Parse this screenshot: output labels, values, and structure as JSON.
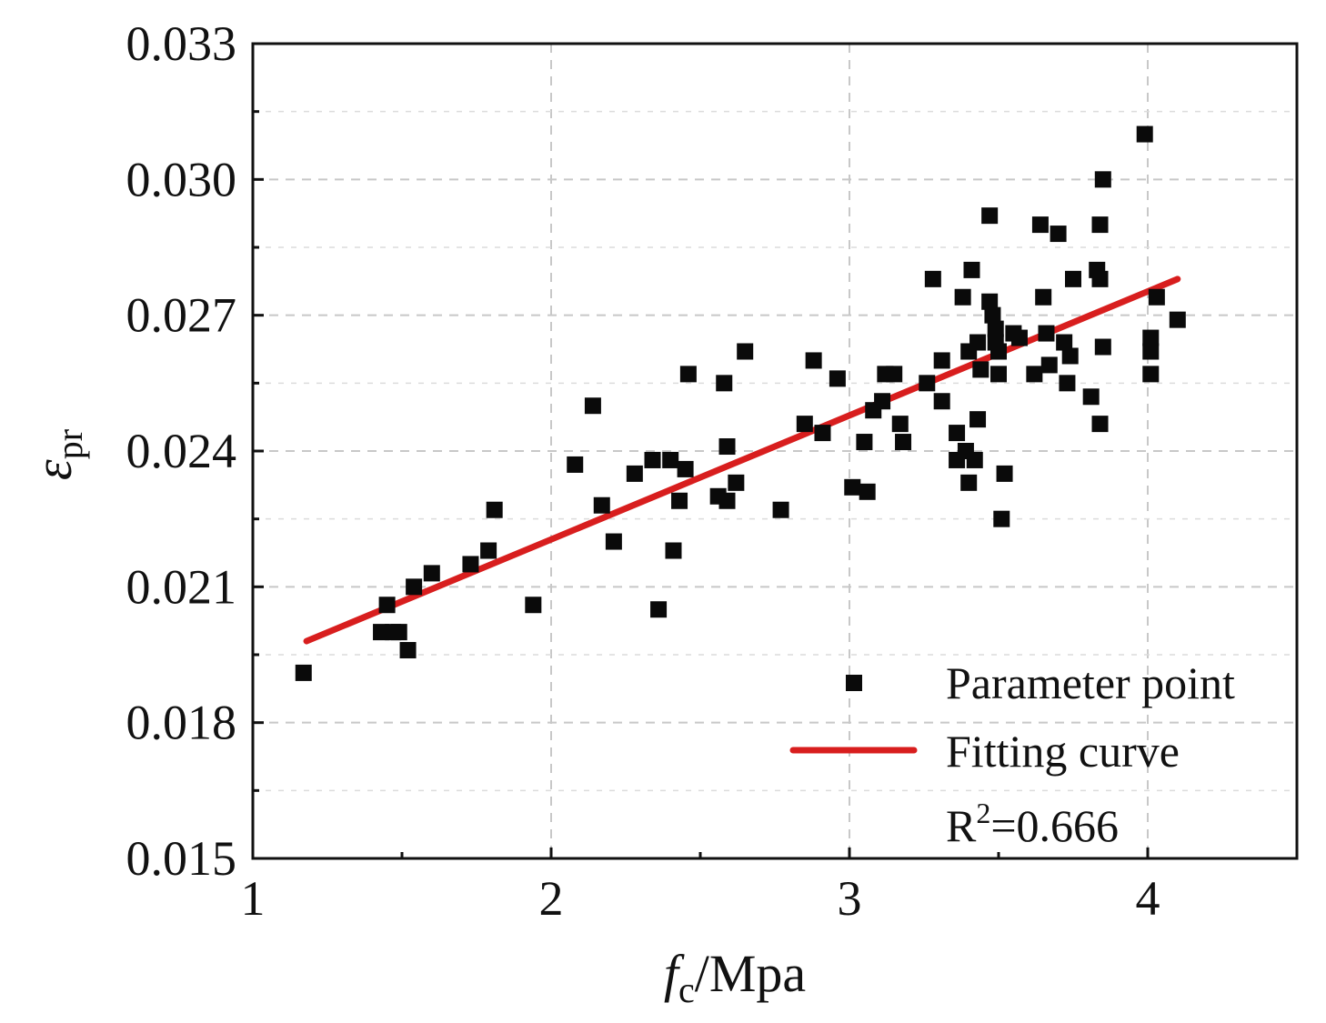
{
  "chart_data": {
    "type": "scatter",
    "title": "",
    "xlabel_italic": "f",
    "xlabel_sub": "c",
    "xlabel_rest": "/Mpa",
    "ylabel_symbol": "ε",
    "ylabel_sub": "pr",
    "xlim": [
      1,
      4.5
    ],
    "ylim": [
      0.015,
      0.033
    ],
    "xticks": [
      1,
      2,
      3,
      4
    ],
    "xtick_labels": [
      "1",
      "2",
      "3",
      "4"
    ],
    "yticks": [
      0.015,
      0.018,
      0.021,
      0.024,
      0.027,
      0.03,
      0.033
    ],
    "ytick_labels": [
      "0.015",
      "0.018",
      "0.021",
      "0.024",
      "0.027",
      "0.030",
      "0.033"
    ],
    "grid": true,
    "legend_position": "bottom-right",
    "series": [
      {
        "name": "Parameter point",
        "marker": "square",
        "color": "#0a0a0a",
        "points": [
          [
            1.17,
            0.0191
          ],
          [
            1.43,
            0.02
          ],
          [
            1.45,
            0.0206
          ],
          [
            1.47,
            0.02
          ],
          [
            1.49,
            0.02
          ],
          [
            1.52,
            0.0196
          ],
          [
            1.54,
            0.021
          ],
          [
            1.6,
            0.0213
          ],
          [
            1.73,
            0.0215
          ],
          [
            1.79,
            0.0218
          ],
          [
            1.81,
            0.0227
          ],
          [
            1.94,
            0.0206
          ],
          [
            2.08,
            0.0237
          ],
          [
            2.14,
            0.025
          ],
          [
            2.17,
            0.0228
          ],
          [
            2.21,
            0.022
          ],
          [
            2.28,
            0.0235
          ],
          [
            2.34,
            0.0238
          ],
          [
            2.36,
            0.0205
          ],
          [
            2.4,
            0.0238
          ],
          [
            2.41,
            0.0218
          ],
          [
            2.43,
            0.0229
          ],
          [
            2.45,
            0.0236
          ],
          [
            2.46,
            0.0257
          ],
          [
            2.56,
            0.023
          ],
          [
            2.58,
            0.0255
          ],
          [
            2.59,
            0.0229
          ],
          [
            2.59,
            0.0241
          ],
          [
            2.62,
            0.0233
          ],
          [
            2.65,
            0.0262
          ],
          [
            2.77,
            0.0227
          ],
          [
            2.85,
            0.0246
          ],
          [
            2.88,
            0.026
          ],
          [
            2.91,
            0.0244
          ],
          [
            2.96,
            0.0256
          ],
          [
            3.01,
            0.0232
          ],
          [
            3.05,
            0.0242
          ],
          [
            3.06,
            0.0231
          ],
          [
            3.08,
            0.0249
          ],
          [
            3.11,
            0.0251
          ],
          [
            3.12,
            0.0257
          ],
          [
            3.15,
            0.0257
          ],
          [
            3.17,
            0.0246
          ],
          [
            3.18,
            0.0242
          ],
          [
            3.26,
            0.0255
          ],
          [
            3.28,
            0.0278
          ],
          [
            3.31,
            0.0251
          ],
          [
            3.31,
            0.026
          ],
          [
            3.36,
            0.0238
          ],
          [
            3.36,
            0.0244
          ],
          [
            3.38,
            0.0274
          ],
          [
            3.39,
            0.024
          ],
          [
            3.4,
            0.0262
          ],
          [
            3.4,
            0.0233
          ],
          [
            3.41,
            0.028
          ],
          [
            3.42,
            0.0238
          ],
          [
            3.43,
            0.0264
          ],
          [
            3.43,
            0.0247
          ],
          [
            3.44,
            0.0258
          ],
          [
            3.47,
            0.0292
          ],
          [
            3.47,
            0.0273
          ],
          [
            3.48,
            0.027
          ],
          [
            3.49,
            0.0267
          ],
          [
            3.49,
            0.0264
          ],
          [
            3.5,
            0.0262
          ],
          [
            3.5,
            0.0257
          ],
          [
            3.51,
            0.0225
          ],
          [
            3.52,
            0.0235
          ],
          [
            3.55,
            0.0266
          ],
          [
            3.57,
            0.0265
          ],
          [
            3.62,
            0.0257
          ],
          [
            3.64,
            0.029
          ],
          [
            3.65,
            0.0274
          ],
          [
            3.66,
            0.0266
          ],
          [
            3.67,
            0.0259
          ],
          [
            3.7,
            0.0288
          ],
          [
            3.72,
            0.0264
          ],
          [
            3.73,
            0.0255
          ],
          [
            3.74,
            0.0261
          ],
          [
            3.75,
            0.0278
          ],
          [
            3.81,
            0.0252
          ],
          [
            3.83,
            0.028
          ],
          [
            3.84,
            0.0246
          ],
          [
            3.84,
            0.029
          ],
          [
            3.84,
            0.0278
          ],
          [
            3.85,
            0.0263
          ],
          [
            3.85,
            0.03
          ],
          [
            3.99,
            0.031
          ],
          [
            4.01,
            0.0265
          ],
          [
            4.01,
            0.0257
          ],
          [
            4.01,
            0.0262
          ],
          [
            4.03,
            0.0274
          ],
          [
            4.1,
            0.0269
          ]
        ]
      },
      {
        "name": "Fitting curve",
        "type": "line",
        "color": "#d81e1e",
        "points": [
          [
            1.18,
            0.0198
          ],
          [
            4.1,
            0.0278
          ]
        ]
      }
    ],
    "legend": {
      "entries": [
        "Parameter point",
        "Fitting curve"
      ],
      "r2_prefix": "R",
      "r2_sup": "2",
      "r2_value": "=0.666"
    }
  }
}
